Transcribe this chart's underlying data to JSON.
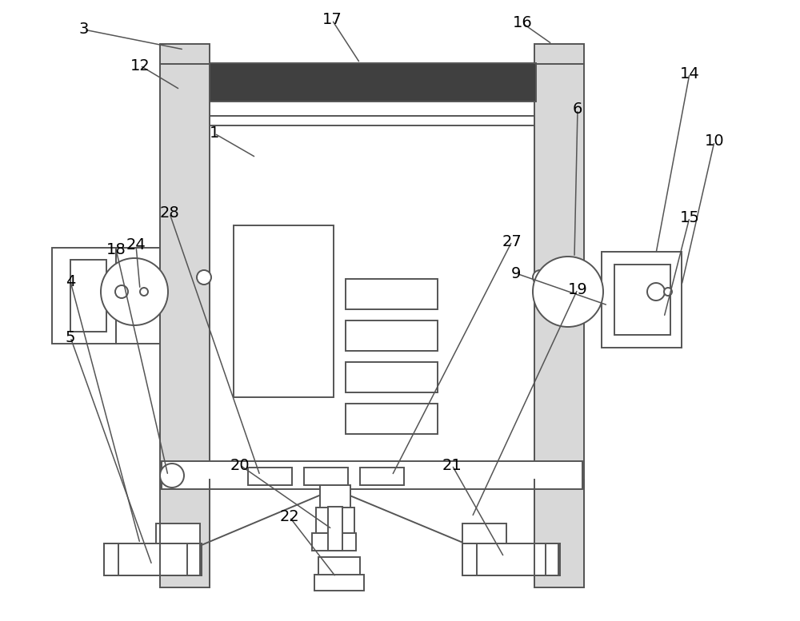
{
  "bg_color": "#ffffff",
  "line_color": "#555555",
  "dark_fill": "#404040",
  "light_fill": "#d8d8d8",
  "white_fill": "#ffffff",
  "fig_width": 10.0,
  "fig_height": 7.77,
  "lw": 1.4
}
